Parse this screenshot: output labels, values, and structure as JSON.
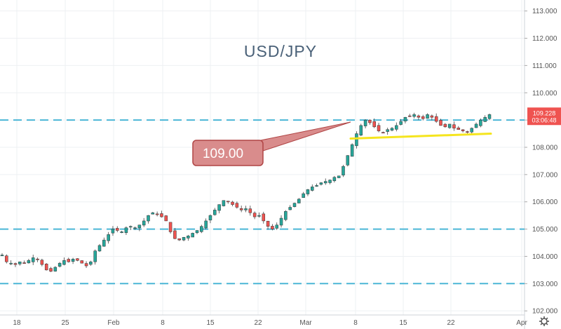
{
  "chart_data": {
    "type": "candlestick",
    "title": "USD/JPY",
    "y_ticks": [
      "113.000",
      "112.000",
      "111.000",
      "110.000",
      "109.000",
      "108.000",
      "107.000",
      "106.000",
      "105.000",
      "104.000",
      "103.000",
      "102.000"
    ],
    "y_tick_values": [
      113,
      112,
      111,
      110,
      109,
      108,
      107,
      106,
      105,
      104,
      103,
      102
    ],
    "ylim": [
      101.85,
      113.3
    ],
    "x_ticks": [
      "18",
      "25",
      "Feb",
      "8",
      "15",
      "22",
      "Mar",
      "8",
      "15",
      "22",
      "Apr"
    ],
    "horizontal_levels": [
      109.0,
      105.0,
      103.0
    ],
    "support_trendline": [
      108.32,
      108.5
    ],
    "callout": {
      "label": "109.00"
    },
    "last_price": {
      "value": "109.228",
      "countdown": "03:06:48"
    },
    "gridlines": true,
    "close_path": [
      104.05,
      103.8,
      103.75,
      103.7,
      103.8,
      103.75,
      103.85,
      103.95,
      103.9,
      103.7,
      103.5,
      103.45,
      103.6,
      103.75,
      103.85,
      103.8,
      103.9,
      103.85,
      103.75,
      103.65,
      103.8,
      104.2,
      104.4,
      104.6,
      104.8,
      105.0,
      104.95,
      104.9,
      105.05,
      105.1,
      105.05,
      105.15,
      105.3,
      105.5,
      105.6,
      105.55,
      105.45,
      105.3,
      104.9,
      104.65,
      104.6,
      104.7,
      104.75,
      104.85,
      104.95,
      105.1,
      105.3,
      105.5,
      105.7,
      105.9,
      106.05,
      106.0,
      105.9,
      105.8,
      105.7,
      105.75,
      105.6,
      105.45,
      105.5,
      105.3,
      105.1,
      105.0,
      105.15,
      105.4,
      105.65,
      105.8,
      105.95,
      106.1,
      106.3,
      106.45,
      106.55,
      106.6,
      106.7,
      106.75,
      106.8,
      106.9,
      106.95,
      107.3,
      107.7,
      108.1,
      108.5,
      108.8,
      109.0,
      108.9,
      108.75,
      108.6,
      108.55,
      108.65,
      108.7,
      108.8,
      108.95,
      109.1,
      109.15,
      109.2,
      109.1,
      109.05,
      109.2,
      109.1,
      108.95,
      108.8,
      108.75,
      108.85,
      108.7,
      108.65,
      108.6,
      108.55,
      108.7,
      108.85,
      109.0,
      109.1,
      109.2
    ]
  }
}
